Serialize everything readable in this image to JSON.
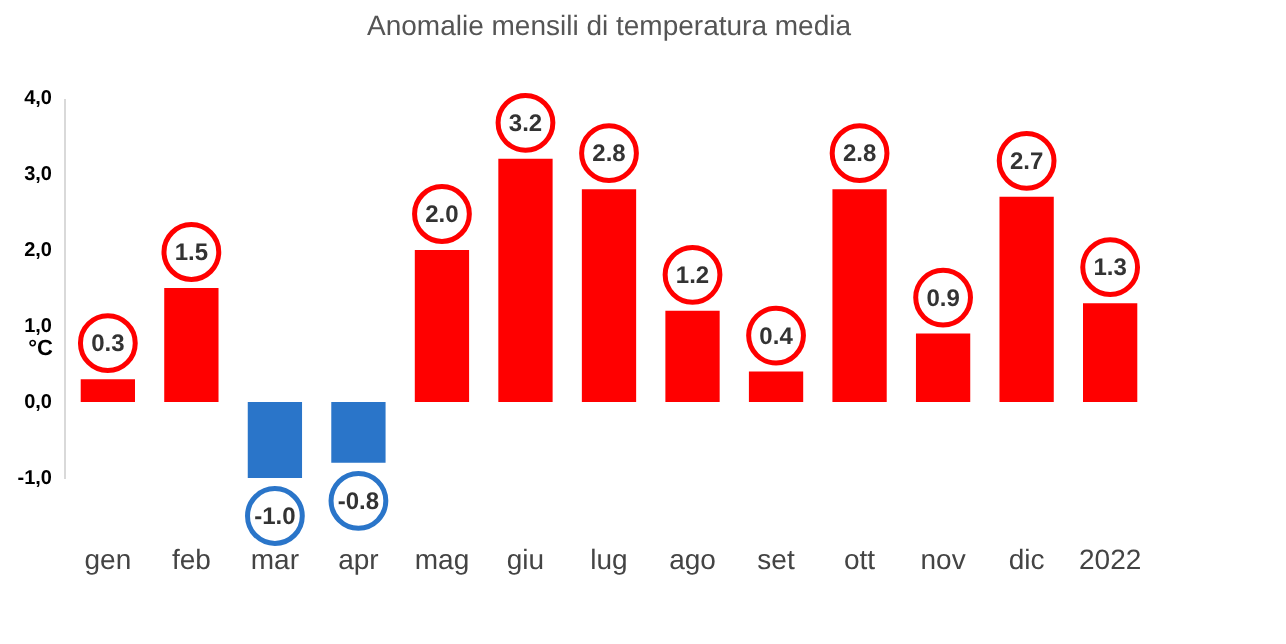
{
  "chart_data": {
    "type": "bar",
    "title": "Anomalie mensili di temperatura media",
    "ylabel": "°C",
    "categories": [
      "gen",
      "feb",
      "mar",
      "apr",
      "mag",
      "giu",
      "lug",
      "ago",
      "set",
      "ott",
      "nov",
      "dic",
      "2022"
    ],
    "values": [
      0.3,
      1.5,
      -1.0,
      -0.8,
      2.0,
      3.2,
      2.8,
      1.2,
      0.4,
      2.8,
      0.9,
      2.7,
      1.3
    ],
    "colors": [
      "#ff0000",
      "#ff0000",
      "#2a75c9",
      "#2a75c9",
      "#ff0000",
      "#ff0000",
      "#ff0000",
      "#ff0000",
      "#ff0000",
      "#ff0000",
      "#ff0000",
      "#ff0000",
      "#ff0000"
    ],
    "ylim": [
      -1.0,
      4.0
    ],
    "yticks": [
      {
        "value": -1.0,
        "label": "-1,0"
      },
      {
        "value": 0.0,
        "label": "0,0"
      },
      {
        "value": 1.0,
        "label": "1,0"
      },
      {
        "value": 2.0,
        "label": "2,0"
      },
      {
        "value": 3.0,
        "label": "3,0"
      },
      {
        "value": 4.0,
        "label": "4,0"
      }
    ],
    "value_labels": [
      "0.3",
      "1.5",
      "-1.0",
      "-0.8",
      "2.0",
      "3.2",
      "2.8",
      "1.2",
      "0.4",
      "2.8",
      "0.9",
      "2.7",
      "1.3"
    ],
    "grid": false
  }
}
